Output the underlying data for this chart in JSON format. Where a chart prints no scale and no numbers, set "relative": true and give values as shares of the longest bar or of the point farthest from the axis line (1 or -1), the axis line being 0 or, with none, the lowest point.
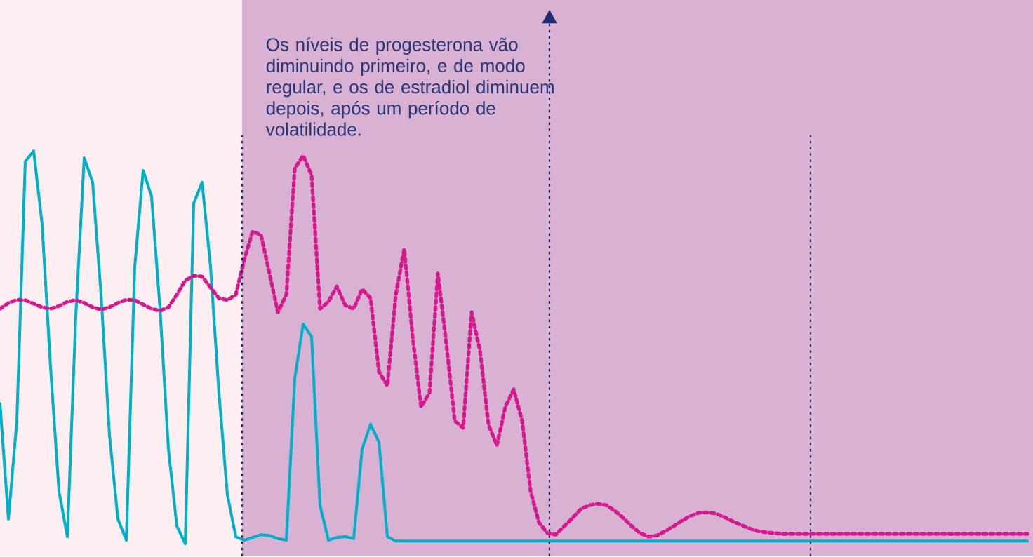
{
  "chart_data": {
    "type": "line",
    "relative": true,
    "legend": false,
    "categories": [
      null,
      null,
      null,
      null,
      null,
      null,
      null,
      null,
      null,
      null,
      null,
      null,
      null,
      null,
      null,
      null,
      null,
      null,
      null,
      null,
      null,
      null,
      null,
      null,
      null,
      null,
      null,
      null,
      null,
      null,
      null,
      null,
      null,
      null,
      null,
      null,
      null,
      null,
      null,
      null,
      null,
      null,
      null,
      null,
      null,
      null,
      null,
      null,
      null,
      null,
      null,
      null,
      null,
      null,
      null,
      null,
      null,
      null,
      null,
      null,
      null,
      null,
      null,
      null,
      null,
      null,
      null,
      null,
      null,
      null,
      null,
      null,
      null,
      null,
      null,
      null,
      null,
      null,
      null,
      null,
      null,
      null,
      null,
      null,
      null,
      null,
      null,
      null,
      null,
      null,
      null,
      null,
      null,
      null,
      null,
      null,
      null,
      null,
      null,
      null,
      null,
      null,
      null,
      null,
      null,
      null,
      null,
      null,
      null,
      null,
      null,
      null,
      null,
      null,
      null,
      null,
      null,
      null,
      null,
      null,
      null,
      null,
      null
    ],
    "series": [
      {
        "color": "#00b0c8",
        "line_style": "solid",
        "values": [
          0.357,
          0.063,
          0.313,
          0.973,
          1,
          0.813,
          0.45,
          0.134,
          0.018,
          0.58,
          0.982,
          0.92,
          0.634,
          0.277,
          0.063,
          0.009,
          0.705,
          0.95,
          0.884,
          0.598,
          0.241,
          0.045,
          0,
          0.866,
          0.92,
          0.705,
          0.384,
          0.125,
          0.018,
          0.009,
          0.016,
          0.023,
          0.021,
          0.013,
          0.009,
          0.42,
          0.559,
          0.527,
          0.098,
          0.009,
          0.016,
          0.018,
          0.013,
          0.241,
          0.304,
          0.259,
          0.018,
          0.007,
          0.007,
          0.007,
          0.007,
          0.007,
          0.007,
          0.007,
          0.007,
          0.007,
          0.007,
          0.007,
          0.007,
          0.007,
          0.007,
          0.007,
          0.007,
          0.007,
          0.007,
          0.007,
          0.007,
          0.007,
          0.007,
          0.007,
          0.007,
          0.007,
          0.007,
          0.007,
          0.007,
          0.007,
          0.007,
          0.007,
          0.007,
          0.007,
          0.007,
          0.007,
          0.007,
          0.007,
          0.007,
          0.007,
          0.007,
          0.007,
          0.007,
          0.007,
          0.007,
          0.007,
          0.007,
          0.007,
          0.007,
          0.007,
          0.007,
          0.007,
          0.007,
          0.007,
          0.007,
          0.007,
          0.007,
          0.007,
          0.007,
          0.007,
          0.007,
          0.007,
          0.007,
          0.007,
          0.007,
          0.007,
          0.007,
          0.007,
          0.007,
          0.007,
          0.007,
          0.007,
          0.007,
          0.007,
          0.007,
          0.007,
          0.007
        ]
      },
      {
        "color": "#d4198c",
        "line_style": "dotted",
        "values": [
          0.598,
          0.613,
          0.621,
          0.62,
          0.611,
          0.602,
          0.598,
          0.605,
          0.616,
          0.62,
          0.613,
          0.602,
          0.596,
          0.602,
          0.613,
          0.621,
          0.62,
          0.609,
          0.598,
          0.593,
          0.602,
          0.634,
          0.67,
          0.682,
          0.68,
          0.652,
          0.625,
          0.62,
          0.634,
          0.723,
          0.795,
          0.786,
          0.688,
          0.589,
          0.634,
          0.955,
          0.988,
          0.938,
          0.598,
          0.616,
          0.655,
          0.607,
          0.598,
          0.648,
          0.625,
          0.438,
          0.402,
          0.634,
          0.75,
          0.527,
          0.348,
          0.384,
          0.688,
          0.509,
          0.313,
          0.295,
          0.589,
          0.491,
          0.304,
          0.25,
          0.348,
          0.393,
          0.313,
          0.134,
          0.054,
          0.027,
          0.023,
          0.045,
          0.066,
          0.089,
          0.098,
          0.102,
          0.098,
          0.084,
          0.066,
          0.045,
          0.027,
          0.018,
          0.021,
          0.032,
          0.045,
          0.059,
          0.071,
          0.079,
          0.08,
          0.077,
          0.068,
          0.057,
          0.048,
          0.039,
          0.032,
          0.029,
          0.027,
          0.025,
          0.025,
          0.025,
          0.025,
          0.025,
          0.025,
          0.025,
          0.025,
          0.025,
          0.025,
          0.025,
          0.025,
          0.025,
          0.025,
          0.025,
          0.025,
          0.025,
          0.025,
          0.025,
          0.025,
          0.025,
          0.025,
          0.025,
          0.025,
          0.025,
          0.025,
          0.025,
          0.025,
          0.025,
          0.025
        ]
      }
    ],
    "annotations": [
      "Os níveis de progesterona vão diminuindo primeiro, e de modo regular, e os de estradiol diminuem depois, após um período de volatilidade."
    ]
  }
}
